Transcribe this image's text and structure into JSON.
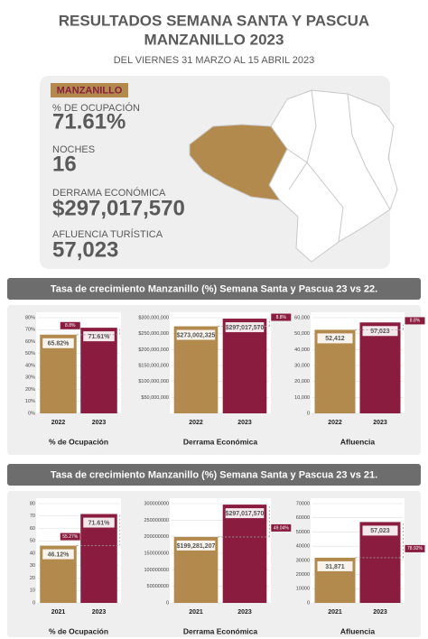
{
  "header": {
    "title_1": "RESULTADOS SEMANA SANTA Y PASCUA",
    "title_2": "MANZANILLO 2023",
    "subtitle": "DEL VIERNES 31 MARZO AL 15 ABRIL 2023"
  },
  "summary": {
    "badge": "MANZANILLO",
    "items": [
      {
        "label": "% DE OCUPACIÓN",
        "value": "71.61%"
      },
      {
        "label": "NOCHES",
        "value": "16"
      },
      {
        "label": "DERRAMA ECONÓMICA",
        "value": "$297,017,570"
      },
      {
        "label": "AFLUENCIA TURÍSTICA",
        "value": "57,023"
      }
    ]
  },
  "sections": [
    {
      "title": "Tasa de crecimiento Manzanillo (%) Semana Santa y Pascua 23 vs 22."
    },
    {
      "title": "Tasa de crecimiento Manzanillo (%) Semana Santa y Pascua 23 vs 21."
    }
  ],
  "chart_data": [
    {
      "type": "bar",
      "x_label": "% de Ocupación",
      "categories": [
        "2022",
        "2023"
      ],
      "colors": [
        "#b38a4d",
        "#8a1d3f"
      ],
      "values": [
        65.82,
        71.61
      ],
      "value_labels": [
        "65.82%",
        "71.61%"
      ],
      "annotation": "8.8%",
      "ylim": [
        0,
        80
      ],
      "yticks": [
        {
          "value": 0,
          "label": "0%"
        },
        {
          "value": 10,
          "label": "10%"
        },
        {
          "value": 20,
          "label": "20%"
        },
        {
          "value": 30,
          "label": "30%"
        },
        {
          "value": 40,
          "label": "40%"
        },
        {
          "value": 50,
          "label": "50%"
        },
        {
          "value": 60,
          "label": "60%"
        },
        {
          "value": 70,
          "label": "70%"
        },
        {
          "value": 80,
          "label": "80%"
        }
      ]
    },
    {
      "type": "bar",
      "x_label": "Derrama Económica",
      "categories": [
        "2022",
        "2023"
      ],
      "colors": [
        "#b38a4d",
        "#8a1d3f"
      ],
      "values": [
        273002325,
        297017570
      ],
      "value_labels": [
        "$273,002,325",
        "$297,017,570"
      ],
      "annotation": "8.8%",
      "ylim": [
        0,
        300000000
      ],
      "yticks": [
        {
          "value": 50000000,
          "label": "$50,000,000"
        },
        {
          "value": 100000000,
          "label": "$100,000,000"
        },
        {
          "value": 150000000,
          "label": "$150,000,000"
        },
        {
          "value": 200000000,
          "label": "$200,000,000"
        },
        {
          "value": 250000000,
          "label": "$250,000,000"
        },
        {
          "value": 300000000,
          "label": "$300,000,000"
        }
      ]
    },
    {
      "type": "bar",
      "x_label": "Afluencia",
      "categories": [
        "2022",
        "2023"
      ],
      "colors": [
        "#b38a4d",
        "#8a1d3f"
      ],
      "values": [
        52412,
        57023
      ],
      "value_labels": [
        "52,412",
        "57,023"
      ],
      "annotation": "8.8%",
      "ylim": [
        0,
        60000
      ],
      "yticks": [
        0,
        {
          "value": 10000,
          "label": "10,000"
        },
        {
          "value": 20000,
          "label": "20,000"
        },
        {
          "value": 30000,
          "label": "30,000"
        },
        {
          "value": 40000,
          "label": "40,000"
        },
        {
          "value": 50000,
          "label": "50,000"
        },
        {
          "value": 60000,
          "label": "60,000"
        }
      ]
    },
    {
      "type": "bar",
      "x_label": "% de Ocupación",
      "categories": [
        "2021",
        "2023"
      ],
      "colors": [
        "#b38a4d",
        "#8a1d3f"
      ],
      "values": [
        46.12,
        71.61
      ],
      "value_labels": [
        "46.12%",
        "71.61%"
      ],
      "annotation": "55.27%",
      "ylim": [
        0,
        80
      ],
      "yticks": [
        0,
        10,
        20,
        30,
        40,
        50,
        60,
        70,
        80
      ]
    },
    {
      "type": "bar",
      "x_label": "Derrama Económica",
      "categories": [
        "2021",
        "2023"
      ],
      "colors": [
        "#b38a4d",
        "#8a1d3f"
      ],
      "values": [
        199281207,
        297017570
      ],
      "value_labels": [
        "$199,281,207",
        "$297,017,570"
      ],
      "annotation": "49.04%",
      "ylim": [
        0,
        300000000
      ],
      "yticks": [
        0,
        50000000,
        100000000,
        150000000,
        200000000,
        250000000,
        300000000
      ]
    },
    {
      "type": "bar",
      "x_label": "Afluencia",
      "categories": [
        "2021",
        "2023"
      ],
      "colors": [
        "#b38a4d",
        "#8a1d3f"
      ],
      "values": [
        31871,
        57023
      ],
      "value_labels": [
        "31,871",
        "57,023"
      ],
      "annotation": "78.92%",
      "ylim": [
        0,
        70000
      ],
      "yticks": [
        0,
        10000,
        20000,
        30000,
        40000,
        50000,
        60000,
        70000
      ]
    }
  ]
}
